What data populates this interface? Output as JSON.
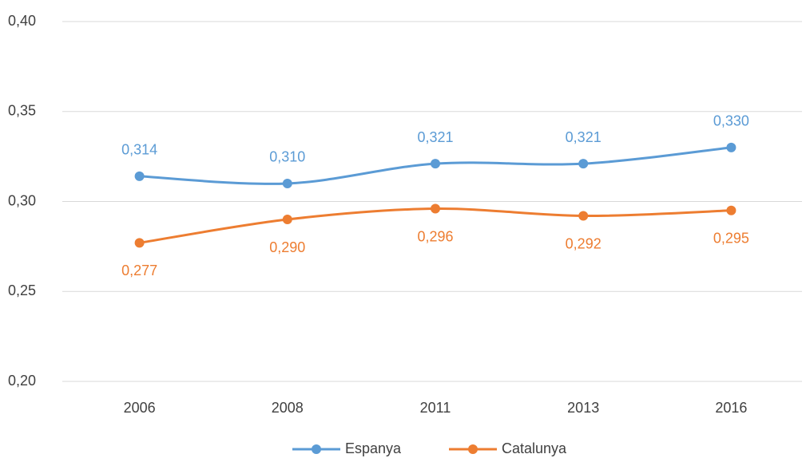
{
  "chart_data": {
    "type": "line",
    "categories": [
      "2006",
      "2008",
      "2011",
      "2013",
      "2016"
    ],
    "series": [
      {
        "name": "Espanya",
        "color": "#5b9bd5",
        "values": [
          0.314,
          0.31,
          0.321,
          0.321,
          0.33
        ],
        "value_labels": [
          "0,314",
          "0,310",
          "0,321",
          "0,321",
          "0,330"
        ]
      },
      {
        "name": "Catalunya",
        "color": "#ed7d31",
        "values": [
          0.277,
          0.29,
          0.296,
          0.292,
          0.295
        ],
        "value_labels": [
          "0,277",
          "0,290",
          "0,296",
          "0,292",
          "0,295"
        ]
      }
    ],
    "ylim": [
      0.2,
      0.4
    ],
    "yticks": [
      {
        "value": 0.2,
        "label": "0,20"
      },
      {
        "value": 0.25,
        "label": "0,25"
      },
      {
        "value": 0.3,
        "label": "0,30"
      },
      {
        "value": 0.35,
        "label": "0,35"
      },
      {
        "value": 0.4,
        "label": "0,40"
      }
    ],
    "grid": true,
    "smooth": true,
    "legend": "bottom"
  }
}
